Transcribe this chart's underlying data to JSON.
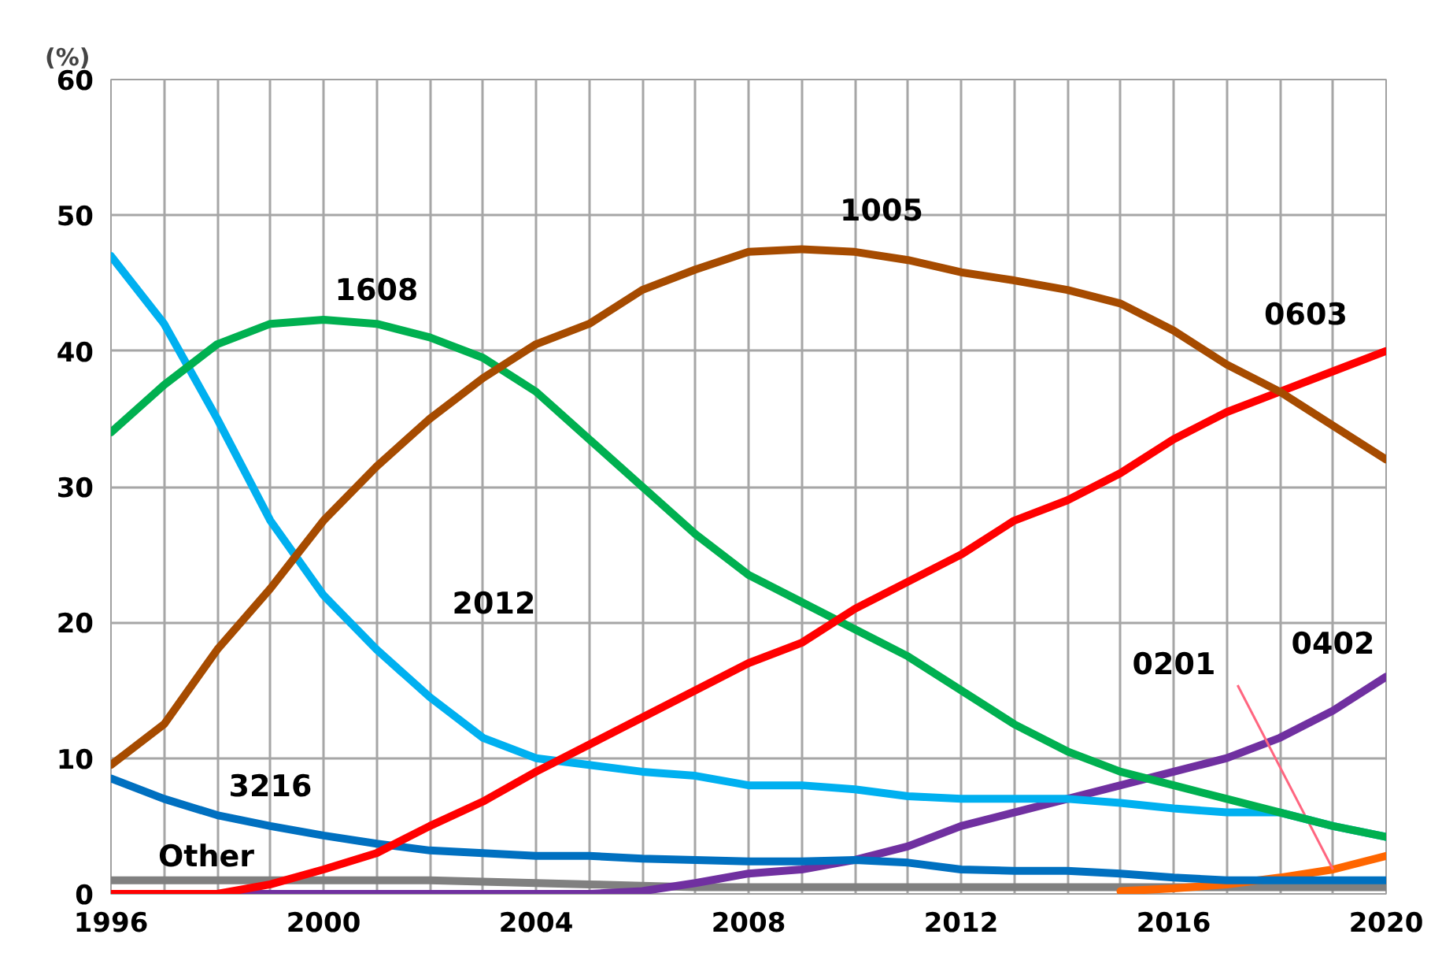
{
  "chart_data": {
    "type": "line",
    "ylabel": "(%)",
    "x": [
      1996,
      1997,
      1998,
      1999,
      2000,
      2001,
      2002,
      2003,
      2004,
      2005,
      2006,
      2007,
      2008,
      2009,
      2010,
      2011,
      2012,
      2013,
      2014,
      2015,
      2016,
      2017,
      2018,
      2019,
      2020
    ],
    "xlim": [
      1996,
      2020
    ],
    "ylim": [
      0,
      60
    ],
    "xticks": [
      1996,
      {
        "value": 1997,
        "label": null
      },
      {
        "value": 1998,
        "label": null
      },
      {
        "value": 1999,
        "label": null
      },
      2000,
      {
        "value": 2001,
        "label": null
      },
      {
        "value": 2002,
        "label": null
      },
      {
        "value": 2003,
        "label": null
      },
      2004,
      {
        "value": 2005,
        "label": null
      },
      {
        "value": 2006,
        "label": null
      },
      {
        "value": 2007,
        "label": null
      },
      2008,
      {
        "value": 2009,
        "label": null
      },
      {
        "value": 2010,
        "label": null
      },
      {
        "value": 2011,
        "label": null
      },
      2012,
      {
        "value": 2013,
        "label": null
      },
      {
        "value": 2014,
        "label": null
      },
      {
        "value": 2015,
        "label": null
      },
      2016,
      {
        "value": 2017,
        "label": null
      },
      {
        "value": 2018,
        "label": null
      },
      {
        "value": 2019,
        "label": null
      },
      2020
    ],
    "yticks": [
      0,
      10,
      20,
      30,
      40,
      50,
      60
    ],
    "grid": true,
    "marker": "none",
    "line_style": "solid",
    "series": [
      {
        "name": "Other",
        "color": "#808080",
        "values": [
          1,
          1,
          1,
          1,
          1,
          1,
          1,
          0.9,
          0.8,
          0.7,
          0.6,
          0.5,
          0.5,
          0.5,
          0.5,
          0.5,
          0.5,
          0.5,
          0.5,
          0.5,
          0.5,
          0.5,
          0.5,
          0.5,
          0.5
        ]
      },
      {
        "name": "0402",
        "color": "#7030a0",
        "values": [
          0,
          0,
          0,
          0,
          0,
          0,
          0,
          0,
          0,
          0,
          0.2,
          0.8,
          1.5,
          1.8,
          2.5,
          3.5,
          5,
          6,
          7,
          8,
          9,
          10,
          11.5,
          13.5,
          16
        ]
      },
      {
        "name": "0201",
        "color": "#ff6600",
        "values": [
          null,
          null,
          null,
          null,
          null,
          null,
          null,
          null,
          null,
          null,
          null,
          null,
          null,
          null,
          null,
          null,
          null,
          null,
          null,
          0.2,
          0.4,
          0.7,
          1.2,
          1.8,
          2.8
        ]
      },
      {
        "name": "3216",
        "color": "#0070c0",
        "values": [
          8.5,
          7,
          5.8,
          5,
          4.3,
          3.7,
          3.2,
          3,
          2.8,
          2.8,
          2.6,
          2.5,
          2.4,
          2.4,
          2.5,
          2.3,
          1.8,
          1.7,
          1.7,
          1.5,
          1.2,
          1,
          1,
          1,
          1
        ]
      },
      {
        "name": "2012",
        "color": "#00b0f0",
        "values": [
          47,
          42,
          35,
          27.5,
          22,
          18,
          14.5,
          11.5,
          10,
          9.5,
          9,
          8.7,
          8,
          8,
          7.7,
          7.2,
          7,
          7,
          7,
          6.7,
          6.3,
          6,
          6,
          5,
          4.2
        ]
      },
      {
        "name": "1608",
        "color": "#00b050",
        "values": [
          34,
          37.5,
          40.5,
          42,
          42.3,
          42,
          41,
          39.5,
          37,
          33.5,
          30,
          26.5,
          23.5,
          21.5,
          19.5,
          17.5,
          15,
          12.5,
          10.5,
          9,
          8,
          7,
          6,
          5,
          4.2
        ]
      },
      {
        "name": "0603",
        "color": "#ff0000",
        "values": [
          0,
          0,
          0,
          0.7,
          1.8,
          3,
          5,
          6.8,
          9,
          11,
          13,
          15,
          17,
          18.5,
          21,
          23,
          25,
          27.5,
          29,
          31,
          33.5,
          35.5,
          37,
          38.5,
          40
        ]
      },
      {
        "name": "1005",
        "color": "#a64b00",
        "values": [
          9.5,
          12.5,
          18,
          22.5,
          27.5,
          31.5,
          35,
          38,
          40.5,
          42,
          44.5,
          46,
          47.3,
          47.5,
          47.3,
          46.7,
          45.8,
          45.2,
          44.5,
          43.5,
          41.5,
          39,
          37,
          34.5,
          32
        ]
      }
    ]
  }
}
